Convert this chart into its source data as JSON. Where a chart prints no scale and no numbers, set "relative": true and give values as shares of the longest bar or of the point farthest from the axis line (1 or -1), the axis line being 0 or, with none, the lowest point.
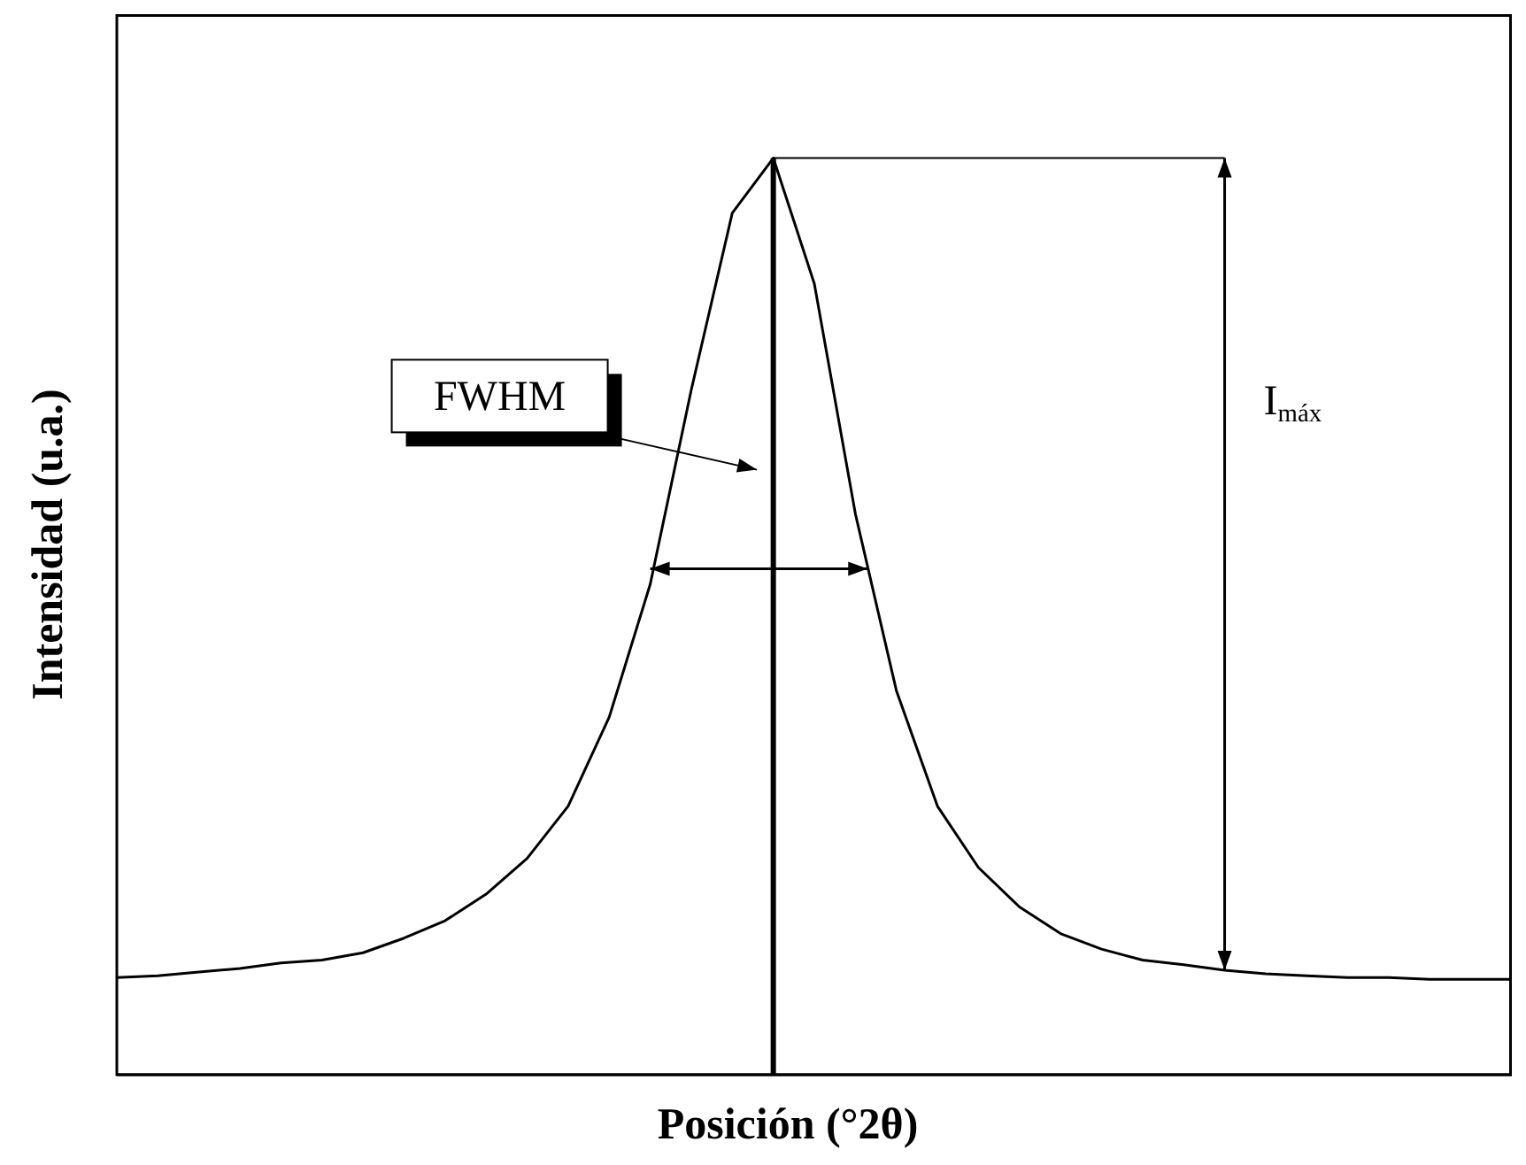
{
  "chart_data": {
    "type": "line",
    "relative": true,
    "xlabel": "Posición (°2θ)",
    "ylabel": "Intensidad (u.a.)",
    "categories": [
      null,
      null,
      null,
      null,
      null,
      null,
      null,
      null,
      null,
      null,
      null,
      null,
      null,
      null,
      null,
      null,
      null,
      null,
      null,
      null,
      null,
      null,
      null,
      null,
      null,
      null,
      null,
      null,
      null,
      null,
      null,
      null,
      null,
      null,
      null
    ],
    "series": [
      {
        "color": "#000000",
        "values": [
          0.106,
          0.108,
          0.112,
          0.116,
          0.122,
          0.125,
          0.133,
          0.149,
          0.168,
          0.197,
          0.236,
          0.293,
          0.39,
          0.535,
          0.747,
          0.94,
          1,
          0.863,
          0.612,
          0.419,
          0.293,
          0.226,
          0.183,
          0.154,
          0.137,
          0.125,
          0.12,
          0.114,
          0.11,
          0.108,
          0.106,
          0.106,
          0.104,
          0.104,
          0.104
        ]
      }
    ],
    "annotations": [
      "FWHM",
      "I$_{máx}$"
    ],
    "grid": false,
    "marker": "none",
    "line_style": "solid"
  }
}
